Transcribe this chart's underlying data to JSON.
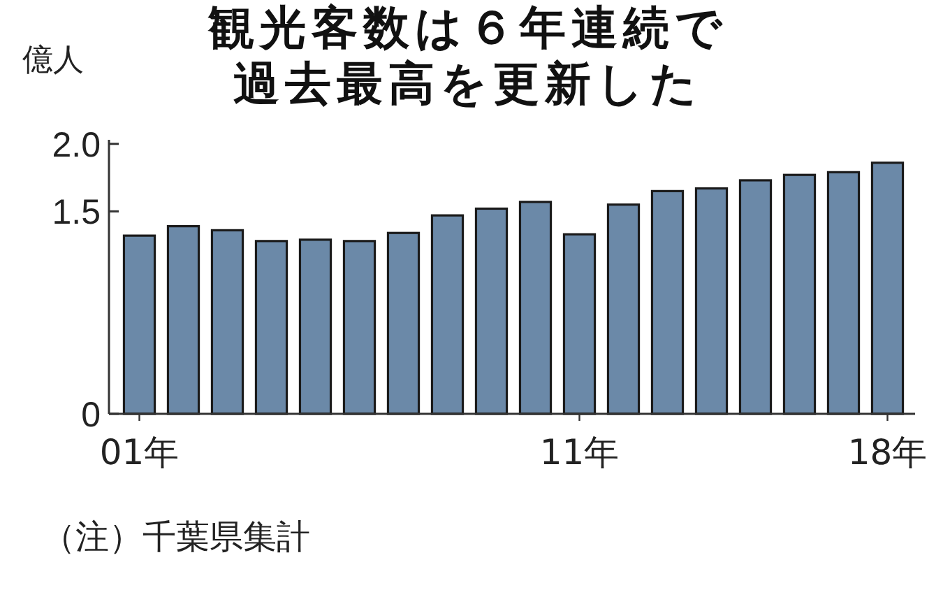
{
  "chart_data": {
    "type": "bar",
    "title": "観光客数は６年連続で過去最高を更新した",
    "ylabel": "億人",
    "categories": [
      "01年",
      null,
      null,
      null,
      null,
      null,
      null,
      null,
      null,
      null,
      "11年",
      null,
      null,
      null,
      null,
      null,
      null,
      "18年"
    ],
    "values": [
      1.32,
      1.39,
      1.36,
      1.28,
      1.29,
      1.28,
      1.34,
      1.47,
      1.52,
      1.57,
      1.33,
      1.55,
      1.65,
      1.67,
      1.73,
      1.77,
      1.79,
      1.86
    ],
    "color": "#6b89a8",
    "ylim": [
      0,
      2.03
    ],
    "yticks": [
      0,
      1.5,
      {
        "value": 2,
        "label": "2.0"
      }
    ],
    "annotations": [
      "（注）千葉県集計"
    ]
  }
}
